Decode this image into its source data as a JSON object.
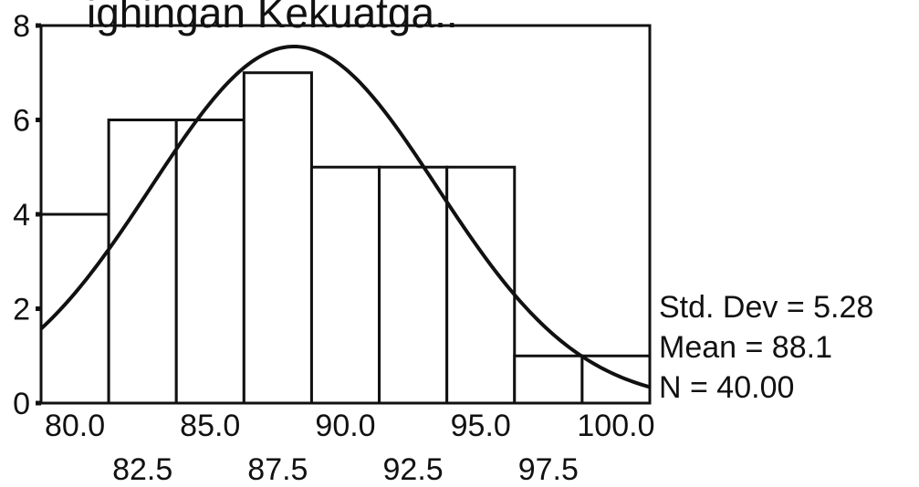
{
  "title_fragment": "ighingan Kekuatga..",
  "stats": {
    "std_dev": "Std. Dev = 5.28",
    "mean": "Mean = 88.1",
    "n": "N = 40.00"
  },
  "chart_data": {
    "type": "bar",
    "subtype": "histogram-with-normal-curve",
    "bin_width": 2.5,
    "bins": [
      {
        "start": 78.75,
        "end": 81.25,
        "count": 4
      },
      {
        "start": 81.25,
        "end": 83.75,
        "count": 6
      },
      {
        "start": 83.75,
        "end": 86.25,
        "count": 6
      },
      {
        "start": 86.25,
        "end": 88.75,
        "count": 7
      },
      {
        "start": 88.75,
        "end": 91.25,
        "count": 5
      },
      {
        "start": 91.25,
        "end": 93.75,
        "count": 5
      },
      {
        "start": 93.75,
        "end": 96.25,
        "count": 5
      },
      {
        "start": 96.25,
        "end": 98.75,
        "count": 1
      },
      {
        "start": 98.75,
        "end": 101.25,
        "count": 1
      }
    ],
    "normal_curve": {
      "mean": 88.1,
      "std_dev": 5.28,
      "n": 40
    },
    "x_ticks_row1": [
      "80.0",
      "85.0",
      "90.0",
      "95.0",
      "100.0"
    ],
    "x_ticks_row1_values": [
      80,
      85,
      90,
      95,
      100
    ],
    "x_ticks_row2": [
      "82.5",
      "87.5",
      "92.5",
      "97.5"
    ],
    "x_ticks_row2_values": [
      82.5,
      87.5,
      92.5,
      97.5
    ],
    "y_ticks": [
      "0",
      "2",
      "4",
      "6",
      "8"
    ],
    "y_ticks_values": [
      0,
      2,
      4,
      6,
      8
    ],
    "xlim": [
      78.75,
      101.25
    ],
    "ylim": [
      0,
      8
    ],
    "grid": false,
    "legend": "none"
  }
}
